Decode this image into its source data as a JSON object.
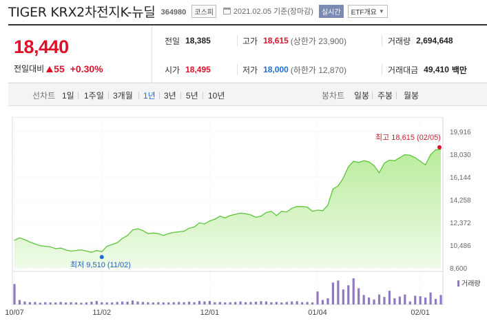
{
  "header": {
    "title": "TIGER KRX2차전지K-뉴딜",
    "code": "364980",
    "market_badge": "코스피",
    "date": "2021.02.05 기준(장마감)",
    "realtime_badge": "실시간",
    "etf_select": "ETF개요"
  },
  "price": {
    "current": "18,440",
    "change_label": "전일대비",
    "change_value": "55",
    "change_pct": "+0.30%"
  },
  "stats": {
    "prev_close_label": "전일",
    "prev_close": "18,385",
    "high_label": "고가",
    "high": "18,615",
    "upper_limit": "(상한가 23,900)",
    "volume_label": "거래량",
    "volume": "2,694,648",
    "open_label": "시가",
    "open": "18,495",
    "low_label": "저가",
    "low": "18,000",
    "lower_limit": "(하한가 12,870)",
    "amount_label": "거래대금",
    "amount": "49,410",
    "amount_unit": "백만"
  },
  "periods": {
    "line_label": "선차트",
    "line_items": [
      "1일",
      "1주일",
      "3개월",
      "1년",
      "3년",
      "5년",
      "10년"
    ],
    "active": "1년",
    "candle_label": "봉차트",
    "candle_items": [
      "일봉",
      "주봉",
      "월봉"
    ]
  },
  "colors": {
    "up": "#e0102a",
    "down": "#1f6cd6",
    "line": "#5cc43a",
    "area_top": "#b9ec9b",
    "area_bottom": "#effbe8",
    "volume": "#8f79c0"
  },
  "chart_data": {
    "type": "area",
    "x_tick_labels": [
      "10/07",
      "11/02",
      "12/01",
      "01/04",
      "02/01"
    ],
    "y_tick_labels": [
      "19,916",
      "18,030",
      "16,144",
      "14,258",
      "12,372",
      "10,486",
      "8,600"
    ],
    "ylim": [
      8600,
      19916
    ],
    "x": [
      "10/07",
      "10/08",
      "10/12",
      "10/13",
      "10/14",
      "10/15",
      "10/16",
      "10/19",
      "10/20",
      "10/21",
      "10/22",
      "10/23",
      "10/26",
      "10/27",
      "10/28",
      "10/29",
      "10/30",
      "11/02",
      "11/03",
      "11/04",
      "11/05",
      "11/06",
      "11/09",
      "11/10",
      "11/11",
      "11/12",
      "11/13",
      "11/16",
      "11/17",
      "11/18",
      "11/19",
      "11/20",
      "11/23",
      "11/24",
      "11/25",
      "11/26",
      "11/27",
      "11/30",
      "12/01",
      "12/02",
      "12/03",
      "12/04",
      "12/07",
      "12/08",
      "12/09",
      "12/10",
      "12/11",
      "12/14",
      "12/15",
      "12/16",
      "12/17",
      "12/18",
      "12/21",
      "12/22",
      "12/23",
      "12/24",
      "12/28",
      "12/29",
      "12/30",
      "01/04",
      "01/05",
      "01/06",
      "01/07",
      "01/08",
      "01/11",
      "01/12",
      "01/13",
      "01/14",
      "01/15",
      "01/18",
      "01/19",
      "01/20",
      "01/21",
      "01/22",
      "01/25",
      "01/26",
      "01/27",
      "01/28",
      "01/29",
      "02/01",
      "02/02",
      "02/03",
      "02/04",
      "02/05"
    ],
    "close": [
      10900,
      11100,
      10950,
      10750,
      10600,
      10450,
      10400,
      10350,
      10200,
      10250,
      10100,
      10000,
      10050,
      10100,
      10000,
      9900,
      10050,
      9950,
      10400,
      10550,
      10700,
      11050,
      11300,
      11750,
      11850,
      11700,
      11450,
      11500,
      11450,
      11300,
      11450,
      11550,
      11600,
      11650,
      11900,
      12000,
      12350,
      12250,
      12500,
      12650,
      12900,
      12750,
      12950,
      13050,
      13150,
      13100,
      13000,
      12800,
      12900,
      13200,
      13300,
      12950,
      13300,
      13250,
      13550,
      13700,
      13700,
      13650,
      13300,
      13400,
      13350,
      13800,
      15150,
      15400,
      16050,
      17000,
      17450,
      17350,
      17500,
      17400,
      17100,
      16500,
      17300,
      17550,
      17500,
      17750,
      18000,
      17950,
      17750,
      17450,
      17150,
      18000,
      18400,
      18440
    ],
    "volume": [
      82,
      18,
      12,
      9,
      10,
      7,
      9,
      8,
      8,
      10,
      8,
      9,
      8,
      7,
      8,
      11,
      14,
      9,
      8,
      8,
      10,
      12,
      11,
      16,
      12,
      10,
      9,
      8,
      9,
      8,
      8,
      9,
      10,
      9,
      11,
      9,
      14,
      12,
      14,
      9,
      10,
      8,
      9,
      10,
      12,
      9,
      10,
      11,
      13,
      12,
      9,
      10,
      8,
      10,
      12,
      13,
      9,
      10,
      8,
      52,
      18,
      25,
      88,
      96,
      60,
      77,
      105,
      65,
      38,
      28,
      20,
      40,
      30,
      55,
      25,
      32,
      40,
      12,
      35,
      33,
      28,
      48,
      22,
      38
    ],
    "volume_label": "거래량",
    "max_annotation": "최고 18,615 (02/05)",
    "min_annotation": "최저 9,510 (11/02)"
  }
}
